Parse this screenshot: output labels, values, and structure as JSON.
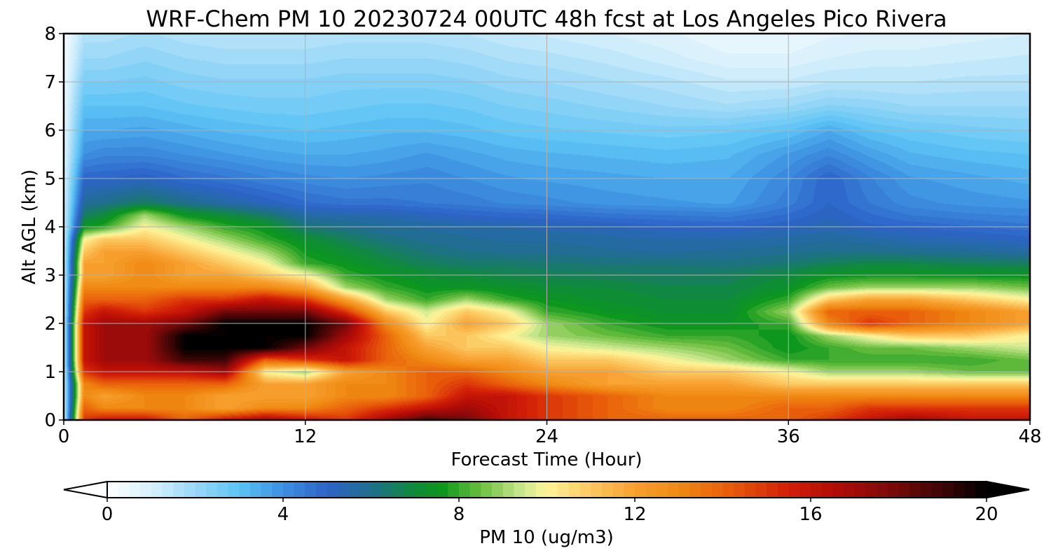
{
  "chart_data": {
    "type": "heatmap",
    "title": "WRF-Chem PM 10  20230724 00UTC 48h fcst at Los Angeles Pico Rivera",
    "xlabel": "Forecast Time (Hour)",
    "ylabel": "Alt AGL (km)",
    "xlim": [
      0,
      48
    ],
    "ylim": [
      0,
      8
    ],
    "xticks": [
      0,
      12,
      24,
      36,
      48
    ],
    "yticks": [
      0,
      1,
      2,
      3,
      4,
      5,
      6,
      7,
      8
    ],
    "grid": true,
    "colorbar": {
      "label": "PM 10  (ug/m3)",
      "orientation": "horizontal",
      "placement": "bottom",
      "range": [
        0,
        20
      ],
      "ticks": [
        0,
        4,
        8,
        12,
        16,
        20
      ],
      "extend": "both",
      "colors": [
        {
          "v": 0,
          "c": "#ffffff"
        },
        {
          "v": 1,
          "c": "#d6f0fc"
        },
        {
          "v": 2,
          "c": "#9ad8f7"
        },
        {
          "v": 3,
          "c": "#5cc3f5"
        },
        {
          "v": 4,
          "c": "#3d8fe0"
        },
        {
          "v": 5,
          "c": "#2d64c8"
        },
        {
          "v": 6,
          "c": "#1f6e8c"
        },
        {
          "v": 7,
          "c": "#0f8a3a"
        },
        {
          "v": 7.6,
          "c": "#0a961e"
        },
        {
          "v": 8.5,
          "c": "#6cbf40"
        },
        {
          "v": 9.4,
          "c": "#c8e68c"
        },
        {
          "v": 10,
          "c": "#fff59a"
        },
        {
          "v": 11,
          "c": "#fcc860"
        },
        {
          "v": 12,
          "c": "#f7a030"
        },
        {
          "v": 13,
          "c": "#f08a12"
        },
        {
          "v": 14.2,
          "c": "#e85a0a"
        },
        {
          "v": 15.5,
          "c": "#d21e08"
        },
        {
          "v": 16.5,
          "c": "#b40c06"
        },
        {
          "v": 17.5,
          "c": "#8c0a0a"
        },
        {
          "v": 19,
          "c": "#3c0404"
        },
        {
          "v": 20,
          "c": "#000000"
        }
      ]
    },
    "x": [
      0,
      1,
      2,
      4,
      6,
      8,
      10,
      12,
      14,
      16,
      18,
      20,
      22,
      24,
      27,
      30,
      33,
      36,
      38,
      40,
      42,
      45,
      48
    ],
    "y": [
      0,
      0.25,
      0.5,
      0.75,
      1,
      1.25,
      1.5,
      1.75,
      2,
      2.25,
      2.5,
      2.75,
      3,
      3.25,
      3.5,
      3.75,
      4,
      4.25,
      4.5,
      5,
      5.5,
      6,
      6.5,
      7,
      7.5,
      8
    ],
    "z": [
      [
        1,
        15,
        16,
        16,
        14,
        16,
        17,
        16,
        15,
        17,
        19,
        18,
        16,
        15,
        14,
        14,
        14,
        14,
        15,
        16,
        17,
        16,
        16
      ],
      [
        1,
        14,
        13,
        13,
        13,
        12,
        13,
        13,
        14,
        15,
        16,
        17,
        16,
        15,
        14,
        13,
        13,
        14,
        14,
        15,
        15,
        15,
        15
      ],
      [
        1,
        13,
        12,
        13,
        13,
        12,
        12,
        12,
        13,
        13,
        14,
        16,
        16,
        15,
        14,
        13,
        13,
        13,
        13,
        13,
        13,
        13,
        13
      ],
      [
        1,
        13,
        14,
        14,
        14,
        14,
        12,
        12,
        13,
        13,
        14,
        15,
        14,
        13,
        12,
        12,
        12,
        11,
        11,
        11,
        11,
        11,
        11
      ],
      [
        1,
        15,
        16,
        16,
        16,
        17,
        10,
        9,
        12,
        13,
        14,
        14,
        13,
        12,
        12,
        11,
        11,
        10,
        9,
        9,
        9,
        8.5,
        8.5
      ],
      [
        1,
        16,
        17,
        17,
        19,
        19,
        14,
        15,
        16,
        14,
        13,
        12,
        12,
        11,
        11,
        10,
        9,
        8,
        8,
        8,
        8,
        8,
        8.5
      ],
      [
        1,
        16,
        17,
        17,
        20,
        20,
        20,
        18,
        16,
        14,
        12,
        11,
        11,
        10,
        9.5,
        9,
        8.5,
        7.5,
        8,
        8.5,
        8.5,
        9,
        9.5
      ],
      [
        1,
        16,
        17,
        17,
        20,
        20,
        20,
        20,
        17,
        14,
        11,
        11,
        10,
        9,
        8.5,
        8,
        8,
        7.5,
        9,
        10,
        11,
        11,
        10
      ],
      [
        1,
        16,
        17,
        17,
        18,
        20,
        20,
        20,
        18,
        13,
        10,
        12,
        11,
        9,
        8,
        7.5,
        7.5,
        8,
        13,
        15,
        14,
        13,
        12
      ],
      [
        1,
        15,
        16,
        15,
        16,
        18,
        18,
        18,
        15,
        11,
        9.5,
        11,
        10,
        8,
        7.5,
        7.2,
        7.2,
        9,
        14,
        14,
        14,
        13,
        12
      ],
      [
        1,
        14,
        14,
        14,
        15,
        15,
        16,
        15,
        12,
        9,
        8,
        9,
        8,
        7.5,
        7.2,
        7,
        7,
        8,
        11,
        12,
        12,
        11,
        10
      ],
      [
        1,
        13,
        13,
        13,
        13,
        13,
        13,
        12,
        9,
        8,
        7.5,
        7.5,
        7.3,
        7.1,
        7,
        6.8,
        6.8,
        7.3,
        8.5,
        9,
        9,
        9,
        8.5
      ],
      [
        1,
        12,
        12,
        13,
        12,
        12,
        11,
        10,
        8,
        7.5,
        7.2,
        7,
        6.8,
        6.7,
        6.6,
        6.5,
        6.6,
        7,
        7.5,
        7.6,
        7.6,
        7.5,
        7.5
      ],
      [
        1,
        12,
        12,
        13,
        12,
        11,
        10,
        8,
        7.5,
        7,
        6.6,
        6.4,
        6.4,
        6.3,
        6.2,
        6.2,
        6.1,
        6.3,
        6.6,
        6.8,
        6.8,
        6.6,
        6.5
      ],
      [
        1,
        11,
        12,
        12,
        11,
        10,
        9,
        7.6,
        7.1,
        6.6,
        6.2,
        6,
        5.9,
        5.9,
        5.8,
        5.7,
        5.8,
        5.9,
        6,
        6,
        5.9,
        5.8,
        5.6
      ],
      [
        1,
        10,
        11,
        11,
        10,
        9,
        8,
        7.2,
        6.6,
        6.1,
        5.9,
        5.8,
        5.7,
        5.7,
        5.6,
        5.5,
        5.5,
        5.6,
        5.7,
        5.6,
        5.4,
        5.3,
        5.1
      ],
      [
        1,
        7.5,
        8,
        10,
        9,
        8,
        7.5,
        6.3,
        6,
        5.8,
        5.7,
        5.6,
        5.5,
        5.4,
        5.3,
        5.1,
        5,
        5.2,
        5.4,
        5.1,
        5,
        4.8,
        4.6
      ],
      [
        1,
        6.5,
        7,
        9,
        7.5,
        7,
        6.4,
        5.6,
        5.5,
        5.4,
        5.2,
        5,
        4.9,
        4.8,
        4.6,
        4.5,
        4.4,
        4.8,
        5.2,
        4.8,
        4.5,
        4.3,
        4.2
      ],
      [
        1,
        5.8,
        6,
        6.5,
        6,
        5.6,
        5.2,
        4.8,
        4.6,
        4.6,
        4.5,
        4.4,
        4.2,
        4.1,
        3.9,
        3.8,
        3.7,
        4.4,
        5,
        4.5,
        4.1,
        3.9,
        3.8
      ],
      [
        0.8,
        5,
        5,
        5.2,
        4.8,
        4.6,
        4.3,
        4.1,
        4,
        4.1,
        4.2,
        4,
        3.8,
        3.7,
        3.6,
        3.5,
        3.5,
        4.2,
        5,
        4.3,
        3.8,
        3.6,
        3.4
      ],
      [
        0.7,
        4,
        4.2,
        4.2,
        4,
        3.8,
        3.6,
        3.5,
        3.5,
        3.6,
        3.8,
        3.6,
        3.4,
        3.3,
        3.2,
        3.1,
        3.2,
        3.8,
        4.2,
        3.7,
        3.3,
        3.1,
        3
      ],
      [
        0.6,
        3.5,
        3.5,
        3.6,
        3.4,
        3.2,
        3.1,
        3,
        3.1,
        3.2,
        3.2,
        3.1,
        2.9,
        2.8,
        2.7,
        2.6,
        2.7,
        3,
        3.5,
        3,
        2.8,
        2.6,
        2.5
      ],
      [
        0.5,
        3,
        3,
        3,
        2.8,
        2.7,
        2.6,
        2.6,
        2.7,
        2.8,
        2.8,
        2.7,
        2.5,
        2.4,
        2.2,
        2,
        1.8,
        2,
        2.3,
        2.2,
        2,
        2,
        2
      ],
      [
        0.4,
        2.5,
        2.5,
        2.6,
        2.4,
        2.3,
        2.3,
        2.3,
        2.4,
        2.4,
        2.4,
        2.3,
        2.1,
        2,
        1.8,
        1.6,
        1.3,
        1.3,
        1.5,
        1.5,
        1.5,
        1.6,
        1.6
      ],
      [
        0.3,
        2,
        2,
        2.2,
        2,
        1.9,
        1.9,
        1.9,
        2,
        2,
        2,
        1.9,
        1.7,
        1.6,
        1.4,
        1.1,
        0.8,
        0.8,
        1,
        1.1,
        1.1,
        1.2,
        1.3
      ],
      [
        0.2,
        1.6,
        1.6,
        1.8,
        1.6,
        1.5,
        1.5,
        1.5,
        1.6,
        1.6,
        1.6,
        1.5,
        1.3,
        1.2,
        1,
        0.8,
        0.5,
        0.5,
        0.7,
        0.8,
        0.8,
        0.9,
        1
      ]
    ]
  }
}
